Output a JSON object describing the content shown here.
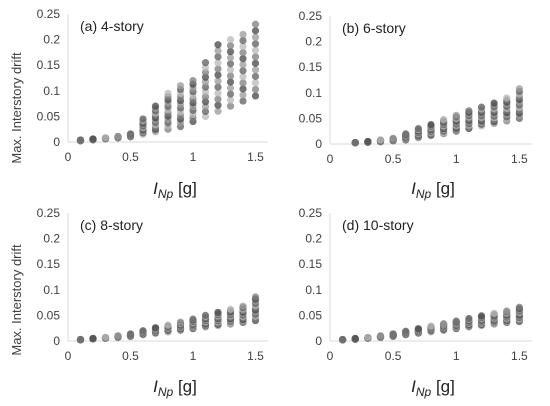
{
  "figure": {
    "ylabel": "Max. Interstory drift",
    "xlabel_main": "I",
    "xlabel_sub": "Np",
    "xlabel_unit": " [g]"
  },
  "colors": {
    "axis": "#d9d9d9",
    "text": "#404040",
    "point": "#555555"
  },
  "chart_data": [
    {
      "type": "scatter",
      "title": "(a) 4-story",
      "xlim": [
        0,
        1.6
      ],
      "ylim": [
        0,
        0.25
      ],
      "xticks": [
        "0",
        "0.5",
        "1",
        "1.5"
      ],
      "yticks": [
        "0",
        "0.05",
        "0.1",
        "0.15",
        "0.2",
        "0.25"
      ],
      "x": [
        0.1,
        0.2,
        0.3,
        0.4,
        0.5,
        0.6,
        0.7,
        0.8,
        0.9,
        1.0,
        1.1,
        1.2,
        1.3,
        1.4,
        1.5
      ],
      "y_min": [
        0.002,
        0.004,
        0.006,
        0.008,
        0.01,
        0.015,
        0.02,
        0.025,
        0.03,
        0.04,
        0.05,
        0.06,
        0.07,
        0.08,
        0.09
      ],
      "y_max": [
        0.004,
        0.006,
        0.008,
        0.011,
        0.016,
        0.045,
        0.07,
        0.095,
        0.11,
        0.12,
        0.155,
        0.19,
        0.2,
        0.21,
        0.23
      ]
    },
    {
      "type": "scatter",
      "title": "(b) 6-story",
      "xlim": [
        0,
        1.6
      ],
      "ylim": [
        0,
        0.25
      ],
      "xticks": [
        "0",
        "0.5",
        "1",
        "1.5"
      ],
      "yticks": [
        "0",
        "0.05",
        "0.1",
        "0.15",
        "0.2",
        "0.25"
      ],
      "x": [
        0.2,
        0.3,
        0.4,
        0.5,
        0.6,
        0.7,
        0.8,
        0.9,
        1.0,
        1.1,
        1.2,
        1.3,
        1.4,
        1.5
      ],
      "y_min": [
        0.002,
        0.003,
        0.004,
        0.006,
        0.008,
        0.012,
        0.016,
        0.02,
        0.025,
        0.03,
        0.035,
        0.04,
        0.045,
        0.05
      ],
      "y_max": [
        0.003,
        0.005,
        0.008,
        0.011,
        0.02,
        0.03,
        0.038,
        0.048,
        0.056,
        0.065,
        0.072,
        0.08,
        0.09,
        0.108
      ]
    },
    {
      "type": "scatter",
      "title": "(c) 8-story",
      "xlim": [
        0,
        1.6
      ],
      "ylim": [
        0,
        0.25
      ],
      "xticks": [
        "0",
        "0.5",
        "1",
        "1.5"
      ],
      "yticks": [
        "0",
        "0.05",
        "0.1",
        "0.15",
        "0.2",
        "0.25"
      ],
      "x": [
        0.1,
        0.2,
        0.3,
        0.4,
        0.5,
        0.6,
        0.7,
        0.8,
        0.9,
        1.0,
        1.1,
        1.2,
        1.3,
        1.4,
        1.5
      ],
      "y_min": [
        0.002,
        0.004,
        0.005,
        0.007,
        0.009,
        0.012,
        0.015,
        0.018,
        0.021,
        0.024,
        0.027,
        0.03,
        0.033,
        0.036,
        0.04
      ],
      "y_max": [
        0.003,
        0.005,
        0.007,
        0.01,
        0.014,
        0.02,
        0.026,
        0.031,
        0.037,
        0.043,
        0.05,
        0.056,
        0.062,
        0.068,
        0.086
      ]
    },
    {
      "type": "scatter",
      "title": "(d) 10-story",
      "xlim": [
        0,
        1.6
      ],
      "ylim": [
        0,
        0.25
      ],
      "xticks": [
        "0",
        "0.5",
        "1",
        "1.5"
      ],
      "yticks": [
        "0",
        "0.05",
        "0.1",
        "0.15",
        "0.2",
        "0.25"
      ],
      "x": [
        0.1,
        0.2,
        0.3,
        0.4,
        0.5,
        0.6,
        0.7,
        0.8,
        0.9,
        1.0,
        1.1,
        1.2,
        1.3,
        1.4,
        1.5
      ],
      "y_min": [
        0.002,
        0.003,
        0.005,
        0.007,
        0.009,
        0.012,
        0.015,
        0.018,
        0.021,
        0.024,
        0.027,
        0.03,
        0.033,
        0.036,
        0.038
      ],
      "y_max": [
        0.003,
        0.005,
        0.007,
        0.01,
        0.014,
        0.019,
        0.024,
        0.029,
        0.034,
        0.039,
        0.044,
        0.049,
        0.054,
        0.059,
        0.066
      ]
    }
  ]
}
